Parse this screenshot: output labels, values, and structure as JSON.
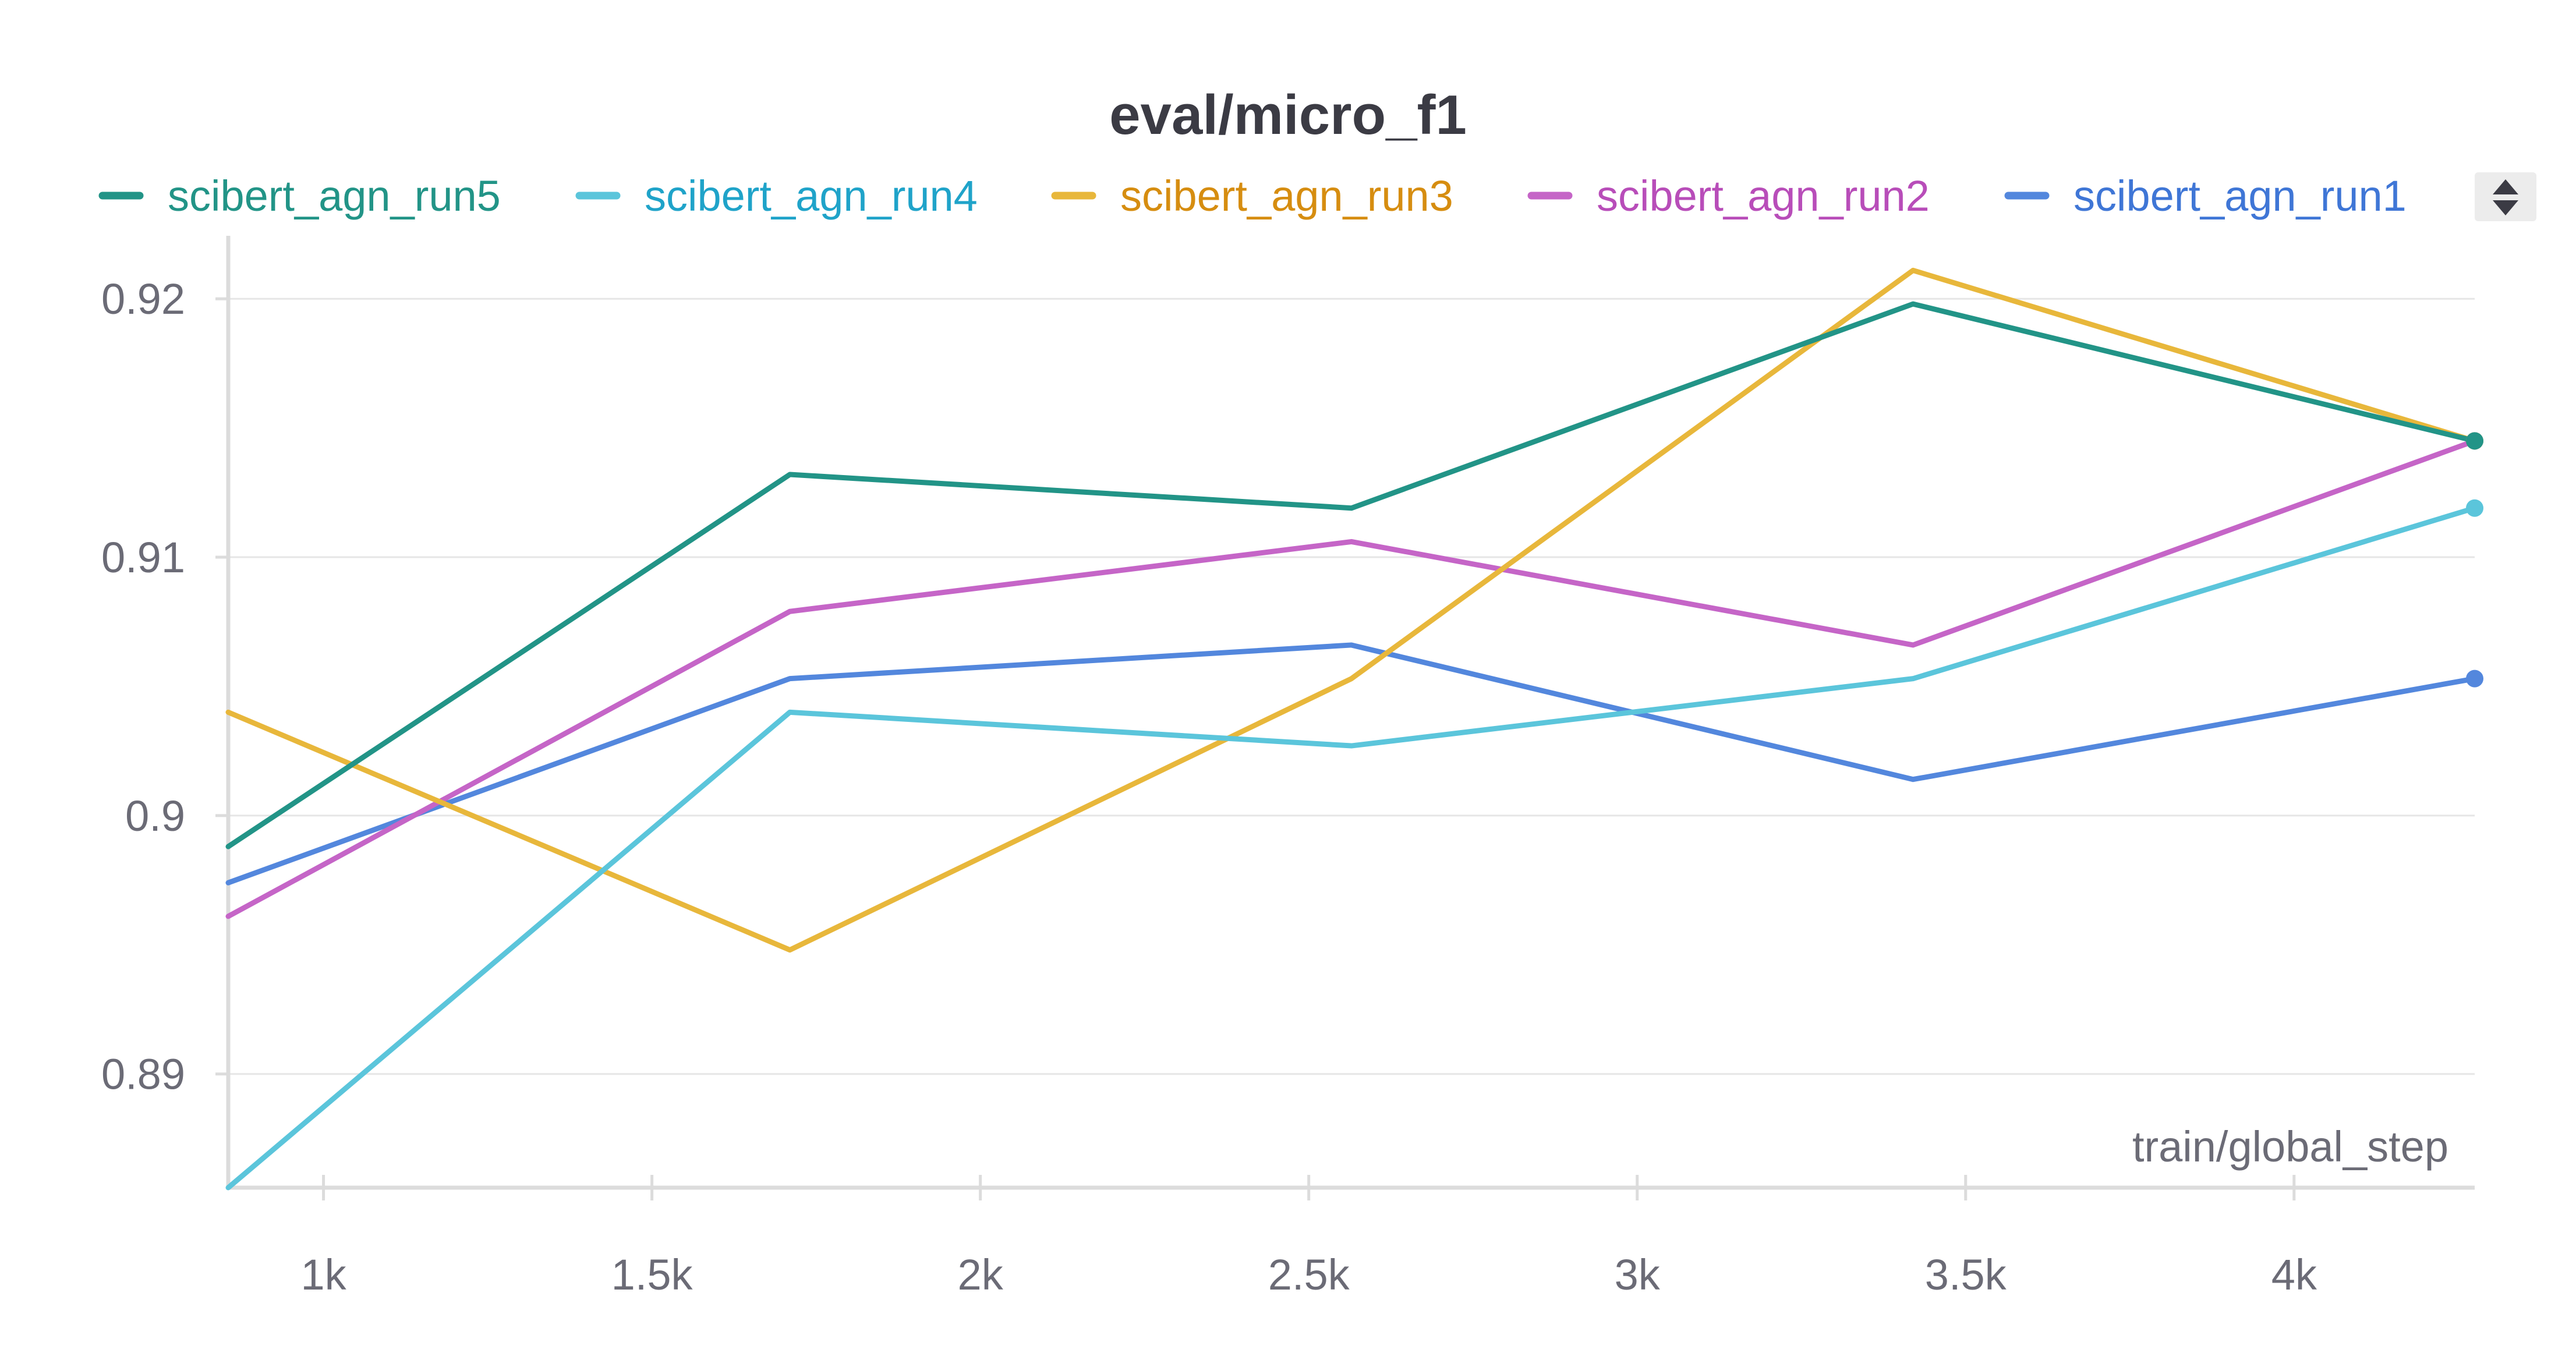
{
  "chart_data": {
    "type": "line",
    "title": "eval/micro_f1",
    "xlabel": "train/global_step",
    "ylabel": "",
    "xlim": [
      855,
      4275
    ],
    "ylim": [
      0.8856,
      0.9221
    ],
    "x_ticks": [
      1000,
      1500,
      2000,
      2500,
      3000,
      3500,
      4000
    ],
    "x_tick_labels": [
      "1k",
      "1.5k",
      "2k",
      "2.5k",
      "3k",
      "3.5k",
      "4k"
    ],
    "y_ticks": [
      0.89,
      0.9,
      0.91,
      0.92
    ],
    "y_tick_labels": [
      "0.89",
      "0.9",
      "0.91",
      "0.92"
    ],
    "grid": true,
    "legend_position": "top",
    "x": [
      855,
      1710,
      2565,
      3420,
      4275
    ],
    "series": [
      {
        "name": "scibert_agn_run5",
        "color": "#229487",
        "values": [
          0.8988,
          0.9132,
          0.9119,
          0.9198,
          0.9145
        ]
      },
      {
        "name": "scibert_agn_run4",
        "color": "#5bc5db",
        "values": [
          0.8856,
          0.904,
          0.9027,
          0.9053,
          0.9119
        ]
      },
      {
        "name": "scibert_agn_run3",
        "color": "#e8b73b",
        "values": [
          0.904,
          0.8948,
          0.9053,
          0.9211,
          0.9145
        ]
      },
      {
        "name": "scibert_agn_run2",
        "color": "#c565c7",
        "values": [
          0.8961,
          0.9079,
          0.9106,
          0.9066,
          0.9145
        ]
      },
      {
        "name": "scibert_agn_run1",
        "color": "#5387dd",
        "values": [
          0.8974,
          0.9053,
          0.9066,
          0.9014,
          0.9053
        ]
      }
    ],
    "legend_text_colors": [
      "#229487",
      "#1fa3c9",
      "#d68d10",
      "#b84db9",
      "#3f76d6"
    ],
    "end_markers": true
  },
  "legend": {
    "scroll_icon": "up-down-arrows-icon"
  }
}
